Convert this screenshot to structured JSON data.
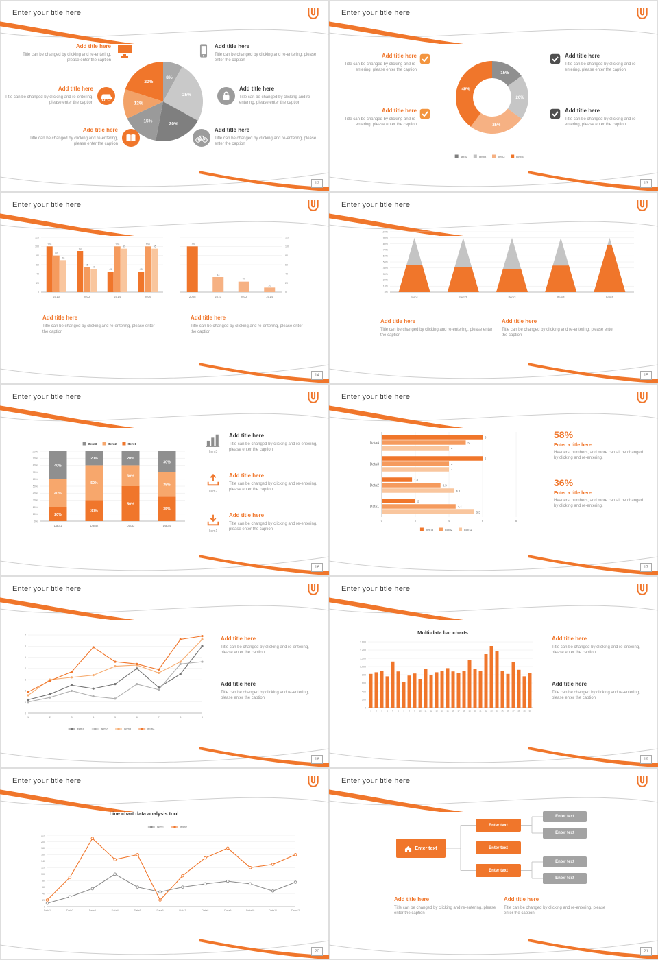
{
  "page_bg": "#d8d8d8",
  "accent": "#f0762b",
  "common": {
    "slide_title": "Enter your title here",
    "add_title": "Add title here",
    "caption": "Title can be changed by clicking and re-entering, please enter the caption",
    "enter_text": "Enter text",
    "enter_title": "Enter a title here",
    "stat_caption": "Headers, numbers, and more can all be changed by clicking and re-entering."
  },
  "slides": {
    "s12": {
      "page": "12"
    },
    "s13": {
      "page": "13"
    },
    "s14": {
      "page": "14"
    },
    "s15": {
      "page": "15"
    },
    "s16": {
      "page": "16",
      "rows": [
        {
          "icon_label": "Item3"
        },
        {
          "icon_label": "Item2"
        },
        {
          "icon_label": "Item1"
        }
      ]
    },
    "s17": {
      "page": "17",
      "stats": [
        {
          "value": "58%"
        },
        {
          "value": "36%"
        }
      ]
    },
    "s18": {
      "page": "18"
    },
    "s19": {
      "page": "19",
      "chart_title": "Multi-data bar charts"
    },
    "s20": {
      "page": "20",
      "chart_title": "Line chart data analysis tool"
    },
    "s21": {
      "page": "21"
    }
  },
  "chart_data": [
    {
      "id": "pie12",
      "type": "pie",
      "values": [
        8,
        25,
        20,
        15,
        12,
        20
      ],
      "labels": [
        "8%",
        "25%",
        "20%",
        "15%",
        "12%",
        "20%"
      ],
      "colors": [
        "#a9a9a9",
        "#c9c9c9",
        "#7f7f7f",
        "#9a9a9a",
        "#f2a268",
        "#f0762b"
      ]
    },
    {
      "id": "donut13",
      "type": "donut",
      "values": [
        15,
        20,
        25,
        40
      ],
      "labels": [
        "15%",
        "20%",
        "25%",
        "40%"
      ],
      "colors": [
        "#8f8f8f",
        "#c6c6c6",
        "#f6b183",
        "#f0762b"
      ],
      "legend": [
        {
          "label": "Item1",
          "color": "#7f7f7f"
        },
        {
          "label": "Item2",
          "color": "#c0c0c0"
        },
        {
          "label": "Item3",
          "color": "#f6b183"
        },
        {
          "label": "Item4",
          "color": "#f0762b"
        }
      ]
    },
    {
      "id": "bar14a",
      "type": "bar_grouped",
      "categories": [
        "2010",
        "2012",
        "2014",
        "2016"
      ],
      "ylim": [
        0,
        120
      ],
      "ystep": 20,
      "series": [
        {
          "name": "Series 1",
          "color": "#f0762b",
          "values": [
            100,
            90,
            45,
            45
          ]
        },
        {
          "name": "Series 2",
          "color": "#f59b5e",
          "values": [
            80,
            55,
            100,
            100
          ]
        },
        {
          "name": "Series 3",
          "color": "#f9c69e",
          "values": [
            70,
            50,
            95,
            95
          ]
        }
      ]
    },
    {
      "id": "bar14b",
      "type": "bar_simple",
      "categories": [
        "2008",
        "2010",
        "2012",
        "2014"
      ],
      "values": [
        100,
        33,
        23,
        10
      ],
      "bar_colors": [
        "#f0762b",
        "#f6b183",
        "#f6b183",
        "#f6b183"
      ],
      "ylim": [
        0,
        120
      ],
      "ystep": 20
    },
    {
      "id": "cone15",
      "type": "cone",
      "categories": [
        "Item1",
        "Item2",
        "Item3",
        "Item4",
        "Item5"
      ],
      "cone_total_pct": 90,
      "orange_pct": [
        45,
        42,
        38,
        44,
        78
      ],
      "gray_color": "#c4c4c4",
      "orange_color": "#f0762b",
      "ylim": [
        0,
        100
      ],
      "ystep": 10
    },
    {
      "id": "stack16",
      "type": "stacked_bar",
      "categories": [
        "Data1",
        "Data2",
        "Data3",
        "Data4"
      ],
      "ylim": [
        0,
        100
      ],
      "ystep": 10,
      "legend": [
        "Item3",
        "Item2",
        "Item1"
      ],
      "series": [
        {
          "name": "Item1",
          "color": "#f0762b",
          "values": [
            20,
            30,
            50,
            35
          ]
        },
        {
          "name": "Item2",
          "color": "#f7a76c",
          "values": [
            40,
            50,
            30,
            35
          ]
        },
        {
          "name": "Item3",
          "color": "#8f8f8f",
          "values": [
            40,
            20,
            20,
            30
          ]
        }
      ]
    },
    {
      "id": "hbar17",
      "type": "hbar",
      "categories": [
        "Data4",
        "Data3",
        "Data2",
        "Data1"
      ],
      "xlim": [
        0,
        8
      ],
      "xstep": 2,
      "series": [
        {
          "name": "Item3",
          "color": "#f0762b",
          "values": [
            6,
            6,
            1.8,
            2
          ]
        },
        {
          "name": "Item2",
          "color": "#f59b5e",
          "values": [
            5,
            4,
            3.5,
            4.4
          ]
        },
        {
          "name": "Item1",
          "color": "#f9c69e",
          "values": [
            4,
            4,
            4.3,
            5.5
          ]
        }
      ]
    },
    {
      "id": "line18",
      "type": "line",
      "x": [
        "1",
        "2",
        "3",
        "4",
        "5",
        "6",
        "7",
        "8",
        "9"
      ],
      "ylim": [
        0,
        7
      ],
      "ystep": 1,
      "marker": "filled",
      "series": [
        {
          "name": "item1",
          "color": "#737373",
          "values": [
            1.2,
            1.7,
            2.5,
            2.2,
            2.6,
            4,
            2.3,
            3.5,
            6
          ]
        },
        {
          "name": "item2",
          "color": "#b0b0b0",
          "values": [
            1,
            1.4,
            2,
            1.5,
            1.3,
            2.6,
            2.1,
            4.4,
            4.6
          ]
        },
        {
          "name": "item3",
          "color": "#f6ad72",
          "values": [
            1.6,
            3,
            3.2,
            3.4,
            4.2,
            4.3,
            3.6,
            4.6,
            6.6
          ]
        },
        {
          "name": "item4",
          "color": "#f0762b",
          "values": [
            1.9,
            2.9,
            3.7,
            5.9,
            4.6,
            4.4,
            3.9,
            6.6,
            6.9
          ]
        }
      ]
    },
    {
      "id": "bar19",
      "type": "bar_many",
      "title": "Multi-data bar charts",
      "color": "#f0762b",
      "ylim": [
        0,
        1600
      ],
      "ystep": 200,
      "x": [
        "1",
        "2",
        "3",
        "4",
        "5",
        "6",
        "7",
        "8",
        "9",
        "10",
        "11",
        "12",
        "13",
        "14",
        "15",
        "16",
        "17",
        "18",
        "19",
        "20",
        "21",
        "22",
        "23",
        "24",
        "25",
        "26",
        "27",
        "28",
        "29",
        "30"
      ],
      "values": [
        820,
        860,
        900,
        760,
        1120,
        880,
        620,
        780,
        830,
        700,
        950,
        800,
        860,
        900,
        960,
        880,
        850,
        900,
        1150,
        950,
        900,
        1300,
        1500,
        1380,
        900,
        820,
        1100,
        920,
        760,
        850
      ]
    },
    {
      "id": "line20",
      "type": "line",
      "title": "Line chart data analysis tool",
      "x": [
        "Data1",
        "Data2",
        "Data3",
        "Data4",
        "Data5",
        "Data6",
        "Data7",
        "Data8",
        "Data9",
        "Data10",
        "Data11",
        "Data12"
      ],
      "ylim": [
        0,
        220
      ],
      "ystep": 20,
      "marker": "hollow",
      "series": [
        {
          "name": "item1",
          "color": "#8c8c8c",
          "values": [
            10,
            30,
            55,
            100,
            60,
            45,
            60,
            70,
            78,
            70,
            48,
            75
          ]
        },
        {
          "name": "item2",
          "color": "#f0762b",
          "values": [
            20,
            90,
            210,
            145,
            160,
            20,
            95,
            150,
            180,
            120,
            130,
            160
          ]
        }
      ]
    }
  ]
}
